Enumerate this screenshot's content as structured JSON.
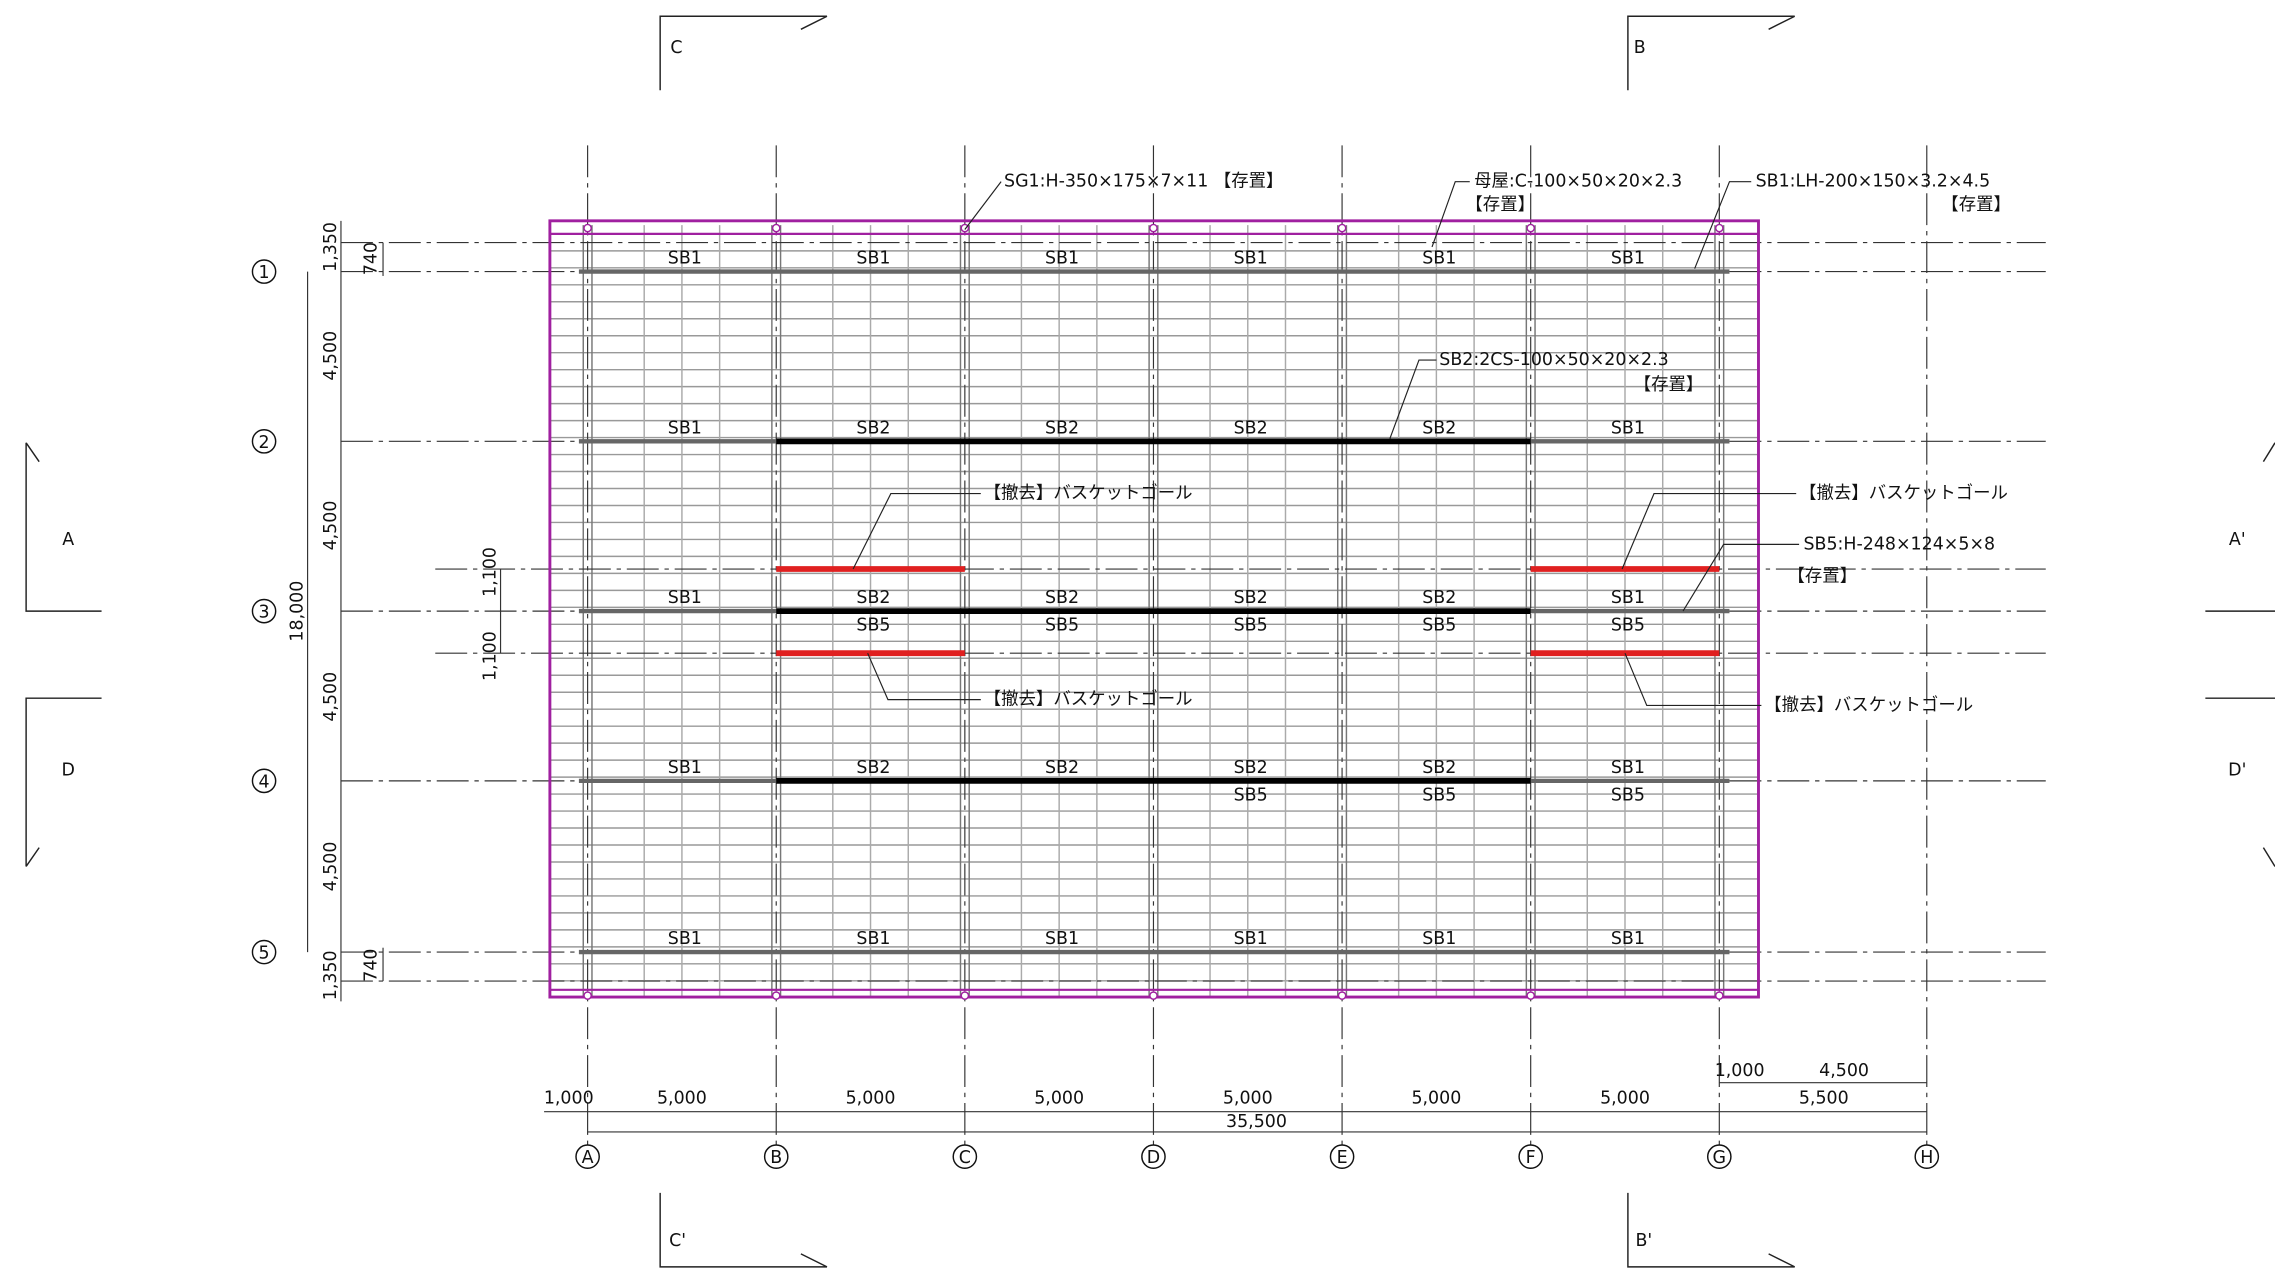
{
  "section_marks": [
    "C",
    "B",
    "A",
    "A'",
    "D",
    "D'",
    "C'",
    "B'"
  ],
  "grid_rows": [
    "1",
    "2",
    "3",
    "4",
    "5"
  ],
  "grid_cols": [
    "A",
    "B",
    "C",
    "D",
    "E",
    "F",
    "G",
    "H"
  ],
  "row_dims": {
    "top": "1,350",
    "top_inner": "740",
    "bays": [
      "4,500",
      "4,500",
      "4,500",
      "4,500"
    ],
    "upper_offset": "1,100",
    "lower_offset": "1,100",
    "bottom": "1,350",
    "bottom_inner": "740",
    "total": "18,000"
  },
  "col_dims": {
    "first": "1,000",
    "bays": [
      "5,000",
      "5,000",
      "5,000",
      "5,000",
      "5,000",
      "5,000"
    ],
    "overhang": "1,000",
    "extension": "4,500",
    "right": "5,500",
    "total": "35,500"
  },
  "beam_labels": [
    [
      "SB1",
      "SB1",
      "SB1",
      "SB1",
      "SB1",
      "SB1"
    ],
    [
      "SB1",
      "SB2",
      "SB2",
      "SB2",
      "SB2",
      "SB1"
    ],
    [
      "SB1",
      "SB2",
      "SB2",
      "SB2",
      "SB2",
      "SB1"
    ],
    [
      "SB1",
      "SB2",
      "SB2",
      "SB2",
      "SB2",
      "SB1"
    ],
    [
      "SB1",
      "SB1",
      "SB1",
      "SB1",
      "SB1",
      "SB1"
    ]
  ],
  "sb5_row3": [
    "SB5",
    "SB5",
    "SB5",
    "SB5",
    "SB5"
  ],
  "sb5_row4": [
    "SB5",
    "SB5",
    "SB5"
  ],
  "annotations": {
    "sg1": "SG1:H-350×175×7×11 【存置】",
    "purlin": "母屋:C-100×50×20×2.3",
    "purlin_note": "【存置】",
    "sb1": "SB1:LH-200×150×3.2×4.5",
    "sb1_note": "【存置】",
    "sb2": "SB2:2CS-100×50×20×2.3",
    "sb2_note": "【存置】",
    "goal_upper_left": "【撤去】バスケットゴール",
    "goal_upper_right": "【撤去】バスケットゴール",
    "goal_lower_left": "【撤去】バスケットゴール",
    "goal_lower_right": "【撤去】バスケットゴール",
    "sb5": "SB5:H-248×124×5×8",
    "sb5_note": "【存置】"
  }
}
